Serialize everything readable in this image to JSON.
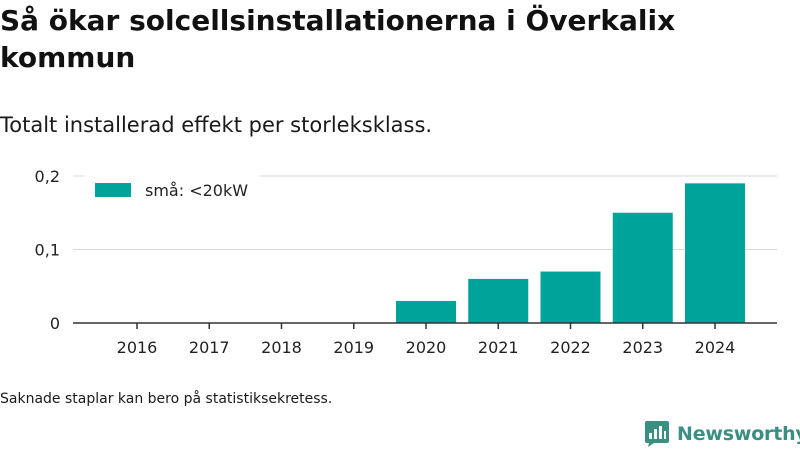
{
  "title": "Så ökar solcellsinstallationerna i Överkalix kommun",
  "subtitle": "Totalt installerad effekt per storleksklass.",
  "note": "Saknade staplar kan bero på statistiksekretess.",
  "brand": "Newsworthy",
  "colors": {
    "bar": "#00a39a",
    "grid": "#d9d9d9",
    "axis": "#333333",
    "brand": "#3a8f83"
  },
  "chart_data": {
    "type": "bar",
    "categories": [
      "2016",
      "2017",
      "2018",
      "2019",
      "2020",
      "2021",
      "2022",
      "2023",
      "2024"
    ],
    "series": [
      {
        "name": "små: <20kW",
        "values": [
          0,
          0,
          0,
          0,
          0.03,
          0.06,
          0.07,
          0.15,
          0.19
        ]
      }
    ],
    "ylim": [
      0,
      0.2
    ],
    "yticks": [
      0,
      0.1,
      0.2
    ],
    "ytick_labels": [
      "0",
      "0,1",
      "0,2"
    ],
    "xlabel": "",
    "ylabel": "",
    "grid": true,
    "legend": "top-left"
  }
}
